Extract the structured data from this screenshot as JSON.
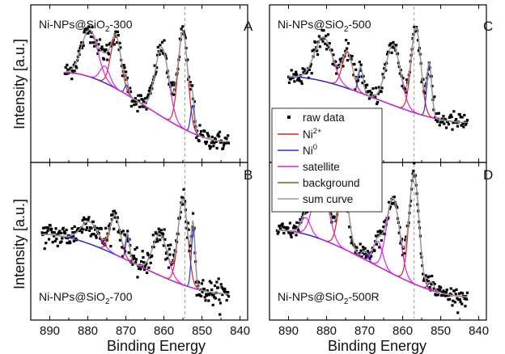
{
  "chart_data": [
    {
      "panel": "A",
      "type": "line",
      "title": "Ni-NPs@SiO2-300",
      "title_main": "Ni-NPs@SiO",
      "title_sub": "2",
      "title_tail": "-300",
      "letter": "A",
      "xlabel": "",
      "ylabel": "Intensity [a.u.]",
      "xlim": [
        895,
        838
      ],
      "x_reversed": true,
      "ylim": [
        0,
        1
      ],
      "y_ticks_labeled": false,
      "title_position": "top-left",
      "ref_line_x": 854.5,
      "raw_data_scatter": {
        "n_points": 240,
        "noise": 0.035
      },
      "background": {
        "x_start": 886,
        "x_end": 843,
        "y_start": 0.58,
        "y_end": 0.08
      },
      "peaks": [
        {
          "component": "Ni2+",
          "center": 855.0,
          "fwhm": 3.0,
          "height": 0.7
        },
        {
          "component": "Ni0",
          "center": 852.5,
          "fwhm": 1.2,
          "height": 0.2
        },
        {
          "component": "satellite",
          "center": 860.5,
          "fwhm": 4.2,
          "height": 0.5
        },
        {
          "component": "Ni2+",
          "center": 872.6,
          "fwhm": 3.2,
          "height": 0.38
        },
        {
          "component": "Ni0",
          "center": 869.8,
          "fwhm": 1.2,
          "height": 0.07
        },
        {
          "component": "satellite",
          "center": 879.5,
          "fwhm": 5.0,
          "height": 0.34
        },
        {
          "component": "satellite",
          "center": 875.5,
          "fwhm": 3.0,
          "height": 0.12
        }
      ]
    },
    {
      "panel": "B",
      "type": "line",
      "title": "Ni-NPs@SiO2-700",
      "title_main": "Ni-NPs@SiO",
      "title_sub": "2",
      "title_tail": "-700",
      "letter": "B",
      "xlabel": "Binding Energy",
      "ylabel": "Intensity [a.u.]",
      "xlim": [
        895,
        838
      ],
      "x_reversed": true,
      "ylim": [
        0,
        1
      ],
      "y_ticks_labeled": false,
      "title_position": "bottom-left",
      "ref_line_x": 854.5,
      "raw_data_scatter": {
        "n_points": 300,
        "noise": 0.045
      },
      "background": {
        "x_start": 892,
        "x_end": 843,
        "y_start": 0.55,
        "y_end": 0.12
      },
      "peaks": [
        {
          "component": "Ni2+",
          "center": 855.0,
          "fwhm": 3.0,
          "height": 0.62
        },
        {
          "component": "Ni0",
          "center": 852.3,
          "fwhm": 1.2,
          "height": 0.42
        },
        {
          "component": "satellite",
          "center": 861.0,
          "fwhm": 4.5,
          "height": 0.3
        },
        {
          "component": "Ni2+",
          "center": 872.8,
          "fwhm": 3.2,
          "height": 0.28
        },
        {
          "component": "Ni0",
          "center": 869.5,
          "fwhm": 1.2,
          "height": 0.18
        },
        {
          "component": "satellite",
          "center": 879.5,
          "fwhm": 5.5,
          "height": 0.16
        }
      ]
    },
    {
      "panel": "C",
      "type": "line",
      "title": "Ni-NPs@SiO2-500",
      "title_main": "Ni-NPs@SiO",
      "title_sub": "2",
      "title_tail": "-500",
      "letter": "C",
      "xlabel": "",
      "ylabel": "",
      "xlim": [
        895,
        838
      ],
      "x_reversed": true,
      "ylim": [
        0,
        1
      ],
      "y_ticks_labeled": false,
      "title_position": "top-left",
      "ref_line_x": 857.0,
      "raw_data_scatter": {
        "n_points": 240,
        "noise": 0.035
      },
      "background": {
        "x_start": 890,
        "x_end": 843,
        "y_start": 0.55,
        "y_end": 0.22
      },
      "peaks": [
        {
          "component": "Ni2+",
          "center": 856.5,
          "fwhm": 3.0,
          "height": 0.62
        },
        {
          "component": "Ni0",
          "center": 853.0,
          "fwhm": 1.5,
          "height": 0.38
        },
        {
          "component": "satellite",
          "center": 862.5,
          "fwhm": 4.5,
          "height": 0.44
        },
        {
          "component": "Ni2+",
          "center": 874.5,
          "fwhm": 3.2,
          "height": 0.26
        },
        {
          "component": "Ni0",
          "center": 871.0,
          "fwhm": 1.5,
          "height": 0.18
        },
        {
          "component": "satellite",
          "center": 880.8,
          "fwhm": 5.5,
          "height": 0.32
        }
      ],
      "legend": {
        "placement": "left",
        "items": [
          {
            "label": "raw data",
            "marker": "square",
            "color": "#000000"
          },
          {
            "label": "Ni",
            "sup": "2+",
            "marker": "line",
            "color": "#e02020"
          },
          {
            "label": "Ni",
            "sup": "0",
            "marker": "line",
            "color": "#2233dd"
          },
          {
            "label": "satellite",
            "marker": "line",
            "color": "#dd22dd"
          },
          {
            "label": "background",
            "marker": "line",
            "color": "#4a7a1a"
          },
          {
            "label": "sum curve",
            "marker": "line",
            "color": "#999999"
          }
        ]
      }
    },
    {
      "panel": "D",
      "type": "line",
      "title": "Ni-NPs@SiO2-500R",
      "title_main": "Ni-NPs@SiO",
      "title_sub": "2",
      "title_tail": "-500R",
      "letter": "D",
      "xlabel": "Binding Energy",
      "ylabel": "",
      "xlim": [
        895,
        838
      ],
      "x_reversed": true,
      "ylim": [
        0,
        1
      ],
      "y_ticks_labeled": false,
      "title_position": "bottom-left",
      "ref_line_x": 857.0,
      "raw_data_scatter": {
        "n_points": 280,
        "noise": 0.03
      },
      "background": {
        "x_start": 893,
        "x_end": 843,
        "y_start": 0.58,
        "y_end": 0.1
      },
      "peaks": [
        {
          "component": "Ni2+",
          "center": 857.0,
          "fwhm": 3.0,
          "height": 0.8
        },
        {
          "component": "Ni0",
          "center": 852.5,
          "fwhm": 1.8,
          "height": 0.06
        },
        {
          "component": "satellite",
          "center": 862.5,
          "fwhm": 4.0,
          "height": 0.55
        },
        {
          "component": "satellite",
          "center": 866.5,
          "fwhm": 3.0,
          "height": 0.18
        },
        {
          "component": "Ni2+",
          "center": 875.5,
          "fwhm": 3.2,
          "height": 0.45
        },
        {
          "component": "Ni0",
          "center": 870.0,
          "fwhm": 1.8,
          "height": 0.06
        },
        {
          "component": "satellite",
          "center": 881.5,
          "fwhm": 4.5,
          "height": 0.44
        },
        {
          "component": "satellite",
          "center": 885.5,
          "fwhm": 3.0,
          "height": 0.12
        }
      ]
    }
  ],
  "x_ticks": [
    890,
    880,
    870,
    860,
    850,
    840
  ],
  "colors": {
    "raw": "#000000",
    "Ni2+": "#e02020",
    "Ni0": "#2233dd",
    "satellite": "#dd22dd",
    "background": "#4a7a1a",
    "sum": "#999999"
  }
}
